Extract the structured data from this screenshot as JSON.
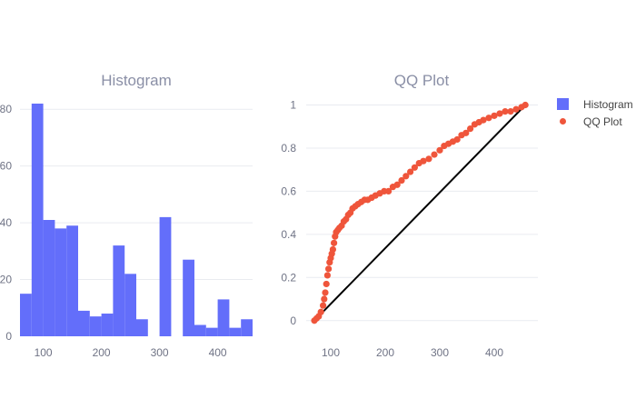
{
  "chart_data": [
    {
      "type": "bar",
      "title": "Histogram",
      "series_name": "Histogram",
      "color": "#636efa",
      "bin_start": 60,
      "bin_width": 20,
      "values": [
        15,
        82,
        41,
        38,
        39,
        9,
        7,
        8,
        32,
        22,
        6,
        0,
        42,
        0,
        27,
        4,
        3,
        13,
        3,
        6
      ],
      "xlim": [
        60,
        460
      ],
      "ylim": [
        0,
        82
      ],
      "xticks": [
        100,
        200,
        300,
        400
      ],
      "yticks": [
        0,
        20,
        40,
        60,
        80
      ],
      "ytick_labels": [
        "0",
        "20",
        "40",
        "60",
        "80"
      ],
      "grid": true
    },
    {
      "type": "scatter",
      "title": "QQ Plot",
      "series_name": "QQ Plot",
      "color": "#ef553b",
      "line_color": "#000000",
      "x": [
        70,
        74,
        78,
        82,
        86,
        88,
        90,
        92,
        94,
        96,
        98,
        100,
        102,
        104,
        106,
        108,
        110,
        113,
        116,
        120,
        124,
        128,
        132,
        136,
        140,
        145,
        150,
        156,
        162,
        168,
        175,
        182,
        190,
        198,
        206,
        214,
        222,
        230,
        238,
        246,
        254,
        262,
        270,
        280,
        290,
        300,
        308,
        316,
        324,
        332,
        340,
        348,
        356,
        364,
        372,
        380,
        390,
        400,
        410,
        420,
        430,
        440,
        450,
        457
      ],
      "y": [
        0.0,
        0.01,
        0.02,
        0.04,
        0.07,
        0.1,
        0.13,
        0.17,
        0.21,
        0.24,
        0.27,
        0.29,
        0.31,
        0.33,
        0.36,
        0.39,
        0.41,
        0.42,
        0.43,
        0.44,
        0.46,
        0.47,
        0.49,
        0.5,
        0.52,
        0.53,
        0.54,
        0.55,
        0.56,
        0.56,
        0.57,
        0.58,
        0.59,
        0.6,
        0.6,
        0.62,
        0.63,
        0.65,
        0.67,
        0.69,
        0.71,
        0.73,
        0.74,
        0.75,
        0.77,
        0.79,
        0.81,
        0.82,
        0.83,
        0.84,
        0.86,
        0.87,
        0.89,
        0.91,
        0.92,
        0.93,
        0.94,
        0.95,
        0.96,
        0.97,
        0.97,
        0.98,
        0.99,
        1.0
      ],
      "line": {
        "x": [
          70,
          457
        ],
        "y": [
          0,
          1
        ]
      },
      "xlim": [
        55,
        480
      ],
      "ylim": [
        -0.06,
        1.04
      ],
      "xticks": [
        100,
        200,
        300,
        400
      ],
      "yticks": [
        0,
        0.2,
        0.4,
        0.6,
        0.8,
        1
      ],
      "ytick_labels": [
        "0",
        "0.2",
        "0.4",
        "0.6",
        "0.8",
        "1"
      ],
      "grid": true
    }
  ],
  "legend": {
    "placement": "top-right",
    "items": [
      {
        "label": "Histogram",
        "color": "#636efa",
        "symbol": "square"
      },
      {
        "label": "QQ Plot",
        "color": "#ef553b",
        "symbol": "circle"
      }
    ]
  }
}
